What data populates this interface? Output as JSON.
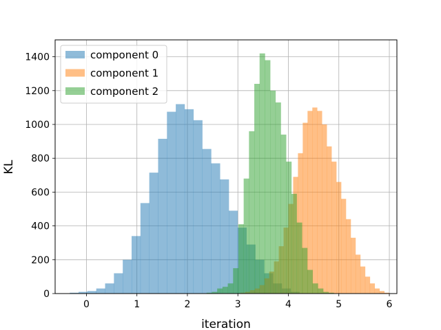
{
  "chart_data": {
    "type": "histogram",
    "title": "",
    "xlabel": "iteration",
    "ylabel": "KL",
    "xlim": [
      -0.62,
      6.15
    ],
    "ylim": [
      0,
      1500
    ],
    "xticks": [
      0,
      1,
      2,
      3,
      4,
      5,
      6
    ],
    "yticks": [
      0,
      200,
      400,
      600,
      800,
      1000,
      1200,
      1400
    ],
    "grid": true,
    "legend_position": "top-left",
    "alpha": 0.5,
    "series": [
      {
        "name": "component 0",
        "color": "#1f77b4",
        "bin_start": -0.33,
        "bin_width": 0.175,
        "values": [
          5,
          10,
          15,
          30,
          60,
          120,
          200,
          340,
          535,
          715,
          915,
          1075,
          1120,
          1090,
          1025,
          855,
          770,
          675,
          490,
          390,
          290,
          200,
          120,
          60,
          30,
          10
        ]
      },
      {
        "name": "component 1",
        "color": "#ff7f0e",
        "bin_start": 3.05,
        "bin_width": 0.095,
        "values": [
          5,
          10,
          20,
          30,
          50,
          90,
          130,
          190,
          280,
          390,
          530,
          690,
          830,
          1010,
          1080,
          1100,
          1080,
          1000,
          870,
          780,
          660,
          560,
          440,
          330,
          230,
          160,
          100,
          60,
          30,
          15,
          5
        ]
      },
      {
        "name": "component 2",
        "color": "#2ca02c",
        "bin_start": 2.38,
        "bin_width": 0.105,
        "values": [
          5,
          10,
          30,
          40,
          60,
          150,
          410,
          680,
          960,
          1240,
          1420,
          1380,
          1200,
          1130,
          940,
          780,
          590,
          420,
          270,
          140,
          60,
          30,
          10,
          5
        ]
      }
    ]
  }
}
